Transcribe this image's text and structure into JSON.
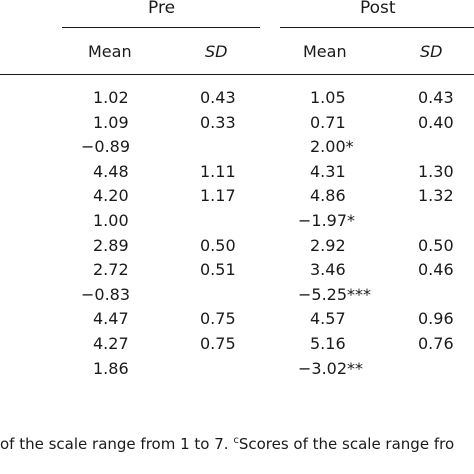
{
  "headers": {
    "pre": "Pre",
    "post": "Post",
    "mean": "Mean",
    "sd": "SD"
  },
  "rows": [
    {
      "pre_mean": "1.02",
      "pre_sd": "0.43",
      "post_mean": "1.05",
      "post_sd": "0.43"
    },
    {
      "pre_mean": "1.09",
      "pre_sd": "0.33",
      "post_mean": "0.71",
      "post_sd": "0.40"
    },
    {
      "pre_mean": "−0.89",
      "pre_sd": "",
      "post_mean": "2.00*",
      "post_sd": ""
    },
    {
      "pre_mean": "4.48",
      "pre_sd": "1.11",
      "post_mean": "4.31",
      "post_sd": "1.30"
    },
    {
      "pre_mean": "4.20",
      "pre_sd": "1.17",
      "post_mean": "4.86",
      "post_sd": "1.32"
    },
    {
      "pre_mean": "1.00",
      "pre_sd": "",
      "post_mean": "−1.97*",
      "post_sd": ""
    },
    {
      "pre_mean": "2.89",
      "pre_sd": "0.50",
      "post_mean": "2.92",
      "post_sd": "0.50"
    },
    {
      "pre_mean": "2.72",
      "pre_sd": "0.51",
      "post_mean": "3.46",
      "post_sd": "0.46"
    },
    {
      "pre_mean": "−0.83",
      "pre_sd": "",
      "post_mean": "−5.25***",
      "post_sd": ""
    },
    {
      "pre_mean": "4.47",
      "pre_sd": "0.75",
      "post_mean": "4.57",
      "post_sd": "0.96"
    },
    {
      "pre_mean": "4.27",
      "pre_sd": "0.75",
      "post_mean": "5.16",
      "post_sd": "0.76"
    },
    {
      "pre_mean": "1.86",
      "pre_sd": "",
      "post_mean": "−3.02**",
      "post_sd": ""
    }
  ],
  "footnote": {
    "part1": "of the scale range from 1 to 7. ",
    "sup": "c",
    "part2": "Scores of the scale range fro"
  }
}
